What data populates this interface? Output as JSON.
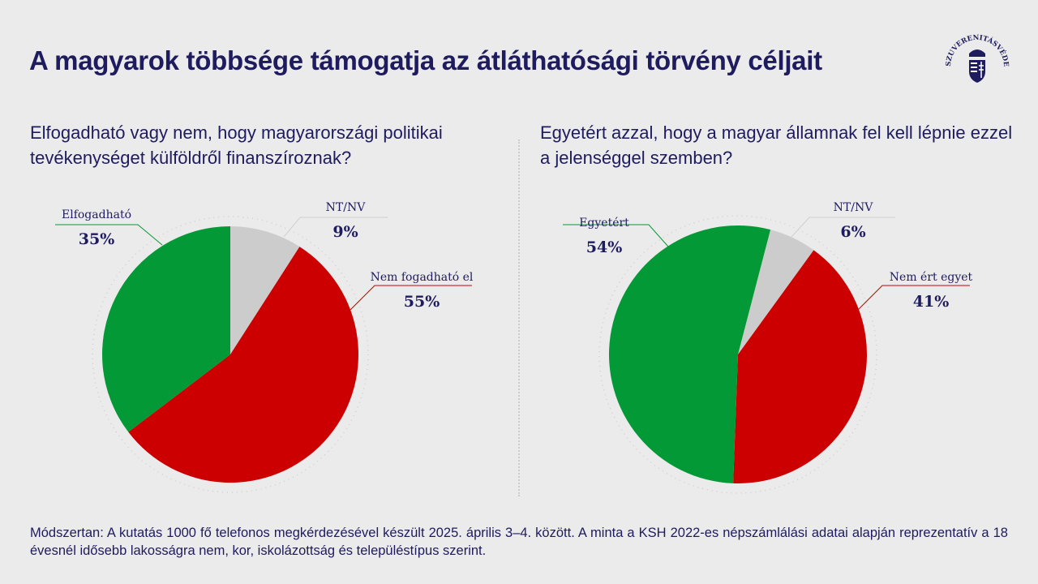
{
  "title": "A magyarok többsége támogatja az átláthatósági törvény céljait",
  "logo_text": "SZUVERENITÁSVÉDELMI KUTATÓINTÉZET",
  "chart_data": [
    {
      "type": "pie",
      "title": "Elfogadható vagy nem, hogy magyarországi politikai tevékenységet külföldről finanszíroznak?",
      "slices": [
        {
          "label": "NT/NV",
          "value": 9,
          "display": "9%",
          "color": "#cccccc"
        },
        {
          "label": "Nem fogadható el",
          "value": 55,
          "display": "55%",
          "color": "#cc0000"
        },
        {
          "label": "Elfogadható",
          "value": 35,
          "display": "35%",
          "color": "#039936"
        }
      ]
    },
    {
      "type": "pie",
      "title": "Egyetért azzal, hogy a magyar államnak fel kell lépnie ezzel a jelenséggel szemben?",
      "slices": [
        {
          "label": "NT/NV",
          "value": 6,
          "display": "6%",
          "color": "#cccccc"
        },
        {
          "label": "Nem ért egyet",
          "value": 41,
          "display": "41%",
          "color": "#cc0000"
        },
        {
          "label": "Egyetért",
          "value": 54,
          "display": "54%",
          "color": "#039936"
        }
      ]
    }
  ],
  "note": "Módszertan: A kutatás 1000 fő telefonos megkérdezésével készült 2025. április 3–4. között. A minta a KSH 2022-es népszámlálási adatai alapján reprezentatív a 18 évesnél idősebb lakosságra nem, kor, iskolázottság és településtípus szerint."
}
